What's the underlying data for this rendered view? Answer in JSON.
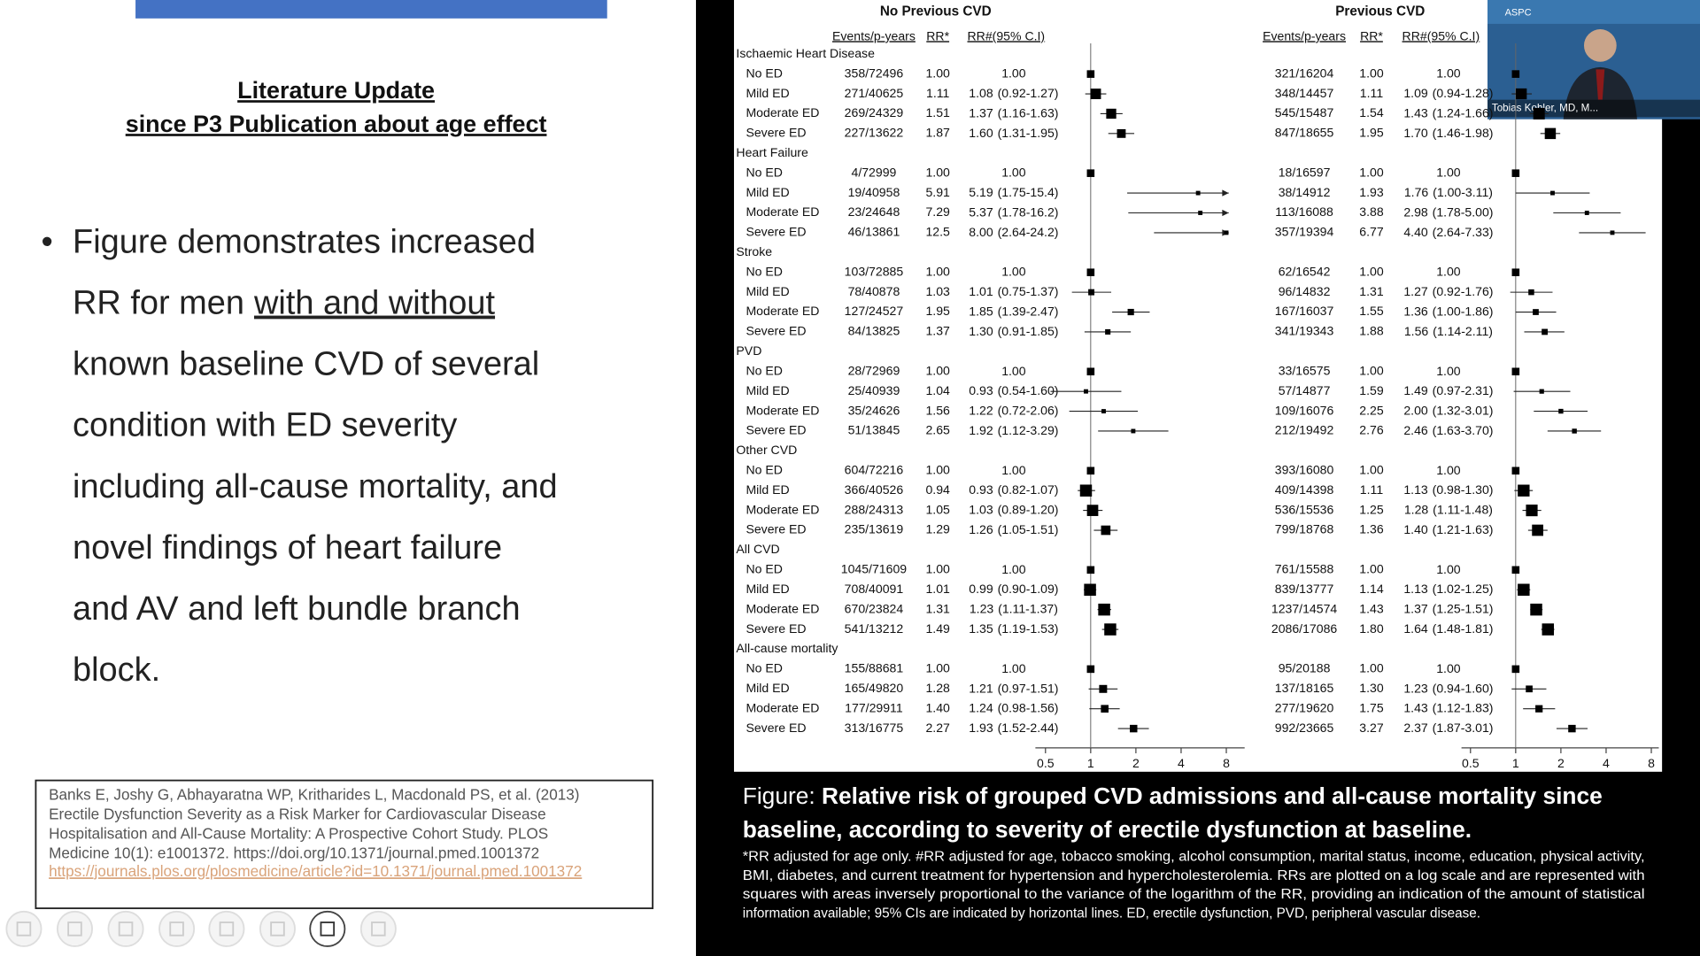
{
  "slide": {
    "title_line1": "Literature Update",
    "title_line2": "since P3 Publication about age effect",
    "bullet": {
      "symbol": "•",
      "lines": [
        "Figure demonstrates  increased",
        [
          "RR for men",
          "with and without"
        ],
        "known baseline CVD of several",
        "condition with ED severity",
        "including all-cause mortality, and",
        "novel findings of heart failure",
        "and AV and left bundle branch",
        "block."
      ]
    },
    "citation": {
      "lines": [
        "Banks E, Joshy G, Abhayaratna WP, Kritharides L, Macdonald PS, et al. (2013)",
        "Erectile Dysfunction Severity as a Risk Marker for Cardiovascular Disease",
        "Hospitalisation and All-Cause Mortality: A Prospective Cohort Study. PLOS",
        "Medicine 10(1): e1001372. https://doi.org/10.1371/journal.pmed.1001372"
      ],
      "link": "https://journals.plos.org/plosmedicine/article?id=10.1371/journal.pmed.1001372"
    }
  },
  "figure": {
    "panels": [
      {
        "title": "No Previous CVD",
        "headers": [
          "Events/p-years",
          "RR*",
          "RR#(95% C.I)"
        ]
      },
      {
        "title": "Previous CVD",
        "headers": [
          "Events/p-years",
          "RR*",
          "RR#(95% C.I)"
        ]
      }
    ],
    "xticks": [
      0.5,
      1,
      2,
      4,
      8
    ],
    "groups": [
      {
        "name": "Ischaemic Heart Disease",
        "rows": [
          {
            "label": "No ED",
            "values": [
              [
                "358/72496",
                "1.00",
                "1.00"
              ],
              [
                "321/16204",
                "1.00",
                "1.00"
              ]
            ]
          },
          {
            "label": "Mild ED",
            "values": [
              [
                "271/40625",
                "1.11",
                "1.08",
                "(0.92-1.27)"
              ],
              [
                "348/14457",
                "1.11",
                "1.09",
                "(0.94-1.28)"
              ]
            ]
          },
          {
            "label": "Moderate ED",
            "values": [
              [
                "269/24329",
                "1.51",
                "1.37",
                "(1.16-1.63)"
              ],
              [
                "545/15487",
                "1.54",
                "1.43",
                "(1.24-1.66)"
              ]
            ]
          },
          {
            "label": "Severe ED",
            "values": [
              [
                "227/13622",
                "1.87",
                "1.60",
                "(1.31-1.95)"
              ],
              [
                "847/18655",
                "1.95",
                "1.70",
                "(1.46-1.98)"
              ]
            ]
          }
        ]
      },
      {
        "name": "Heart Failure",
        "rows": [
          {
            "label": "No ED",
            "values": [
              [
                "4/72999",
                "1.00",
                "1.00"
              ],
              [
                "18/16597",
                "1.00",
                "1.00"
              ]
            ]
          },
          {
            "label": "Mild ED",
            "values": [
              [
                "19/40958",
                "5.91",
                "5.19",
                "(1.75-15.4)"
              ],
              [
                "38/14912",
                "1.93",
                "1.76",
                "(1.00-3.11)"
              ]
            ]
          },
          {
            "label": "Moderate ED",
            "values": [
              [
                "23/24648",
                "7.29",
                "5.37",
                "(1.78-16.2)"
              ],
              [
                "113/16088",
                "3.88",
                "2.98",
                "(1.78-5.00)"
              ]
            ]
          },
          {
            "label": "Severe ED",
            "values": [
              [
                "46/13861",
                "12.5",
                "8.00",
                "(2.64-24.2)"
              ],
              [
                "357/19394",
                "6.77",
                "4.40",
                "(2.64-7.33)"
              ]
            ]
          }
        ]
      },
      {
        "name": "Stroke",
        "rows": [
          {
            "label": "No ED",
            "values": [
              [
                "103/72885",
                "1.00",
                "1.00"
              ],
              [
                "62/16542",
                "1.00",
                "1.00"
              ]
            ]
          },
          {
            "label": "Mild ED",
            "values": [
              [
                "78/40878",
                "1.03",
                "1.01",
                "(0.75-1.37)"
              ],
              [
                "96/14832",
                "1.31",
                "1.27",
                "(0.92-1.76)"
              ]
            ]
          },
          {
            "label": "Moderate ED",
            "values": [
              [
                "127/24527",
                "1.95",
                "1.85",
                "(1.39-2.47)"
              ],
              [
                "167/16037",
                "1.55",
                "1.36",
                "(1.00-1.86)"
              ]
            ]
          },
          {
            "label": "Severe ED",
            "values": [
              [
                "84/13825",
                "1.37",
                "1.30",
                "(0.91-1.85)"
              ],
              [
                "341/19343",
                "1.88",
                "1.56",
                "(1.14-2.11)"
              ]
            ]
          }
        ]
      },
      {
        "name": "PVD",
        "rows": [
          {
            "label": "No ED",
            "values": [
              [
                "28/72969",
                "1.00",
                "1.00"
              ],
              [
                "33/16575",
                "1.00",
                "1.00"
              ]
            ]
          },
          {
            "label": "Mild ED",
            "values": [
              [
                "25/40939",
                "1.04",
                "0.93",
                "(0.54-1.60)"
              ],
              [
                "57/14877",
                "1.59",
                "1.49",
                "(0.97-2.31)"
              ]
            ]
          },
          {
            "label": "Moderate ED",
            "values": [
              [
                "35/24626",
                "1.56",
                "1.22",
                "(0.72-2.06)"
              ],
              [
                "109/16076",
                "2.25",
                "2.00",
                "(1.32-3.01)"
              ]
            ]
          },
          {
            "label": "Severe ED",
            "values": [
              [
                "51/13845",
                "2.65",
                "1.92",
                "(1.12-3.29)"
              ],
              [
                "212/19492",
                "2.76",
                "2.46",
                "(1.63-3.70)"
              ]
            ]
          }
        ]
      },
      {
        "name": "Other CVD",
        "rows": [
          {
            "label": "No ED",
            "values": [
              [
                "604/72216",
                "1.00",
                "1.00"
              ],
              [
                "393/16080",
                "1.00",
                "1.00"
              ]
            ]
          },
          {
            "label": "Mild ED",
            "values": [
              [
                "366/40526",
                "0.94",
                "0.93",
                "(0.82-1.07)"
              ],
              [
                "409/14398",
                "1.11",
                "1.13",
                "(0.98-1.30)"
              ]
            ]
          },
          {
            "label": "Moderate ED",
            "values": [
              [
                "288/24313",
                "1.05",
                "1.03",
                "(0.89-1.20)"
              ],
              [
                "536/15536",
                "1.25",
                "1.28",
                "(1.11-1.48)"
              ]
            ]
          },
          {
            "label": "Severe ED",
            "values": [
              [
                "235/13619",
                "1.29",
                "1.26",
                "(1.05-1.51)"
              ],
              [
                "799/18768",
                "1.36",
                "1.40",
                "(1.21-1.63)"
              ]
            ]
          }
        ]
      },
      {
        "name": "All CVD",
        "rows": [
          {
            "label": "No ED",
            "values": [
              [
                "1045/71609",
                "1.00",
                "1.00"
              ],
              [
                "761/15588",
                "1.00",
                "1.00"
              ]
            ]
          },
          {
            "label": "Mild ED",
            "values": [
              [
                "708/40091",
                "1.01",
                "0.99",
                "(0.90-1.09)"
              ],
              [
                "839/13777",
                "1.14",
                "1.13",
                "(1.02-1.25)"
              ]
            ]
          },
          {
            "label": "Moderate ED",
            "values": [
              [
                "670/23824",
                "1.31",
                "1.23",
                "(1.11-1.37)"
              ],
              [
                "1237/14574",
                "1.43",
                "1.37",
                "(1.25-1.51)"
              ]
            ]
          },
          {
            "label": "Severe ED",
            "values": [
              [
                "541/13212",
                "1.49",
                "1.35",
                "(1.19-1.53)"
              ],
              [
                "2086/17086",
                "1.80",
                "1.64",
                "(1.48-1.81)"
              ]
            ]
          }
        ]
      },
      {
        "name": "All-cause mortality",
        "rows": [
          {
            "label": "No ED",
            "values": [
              [
                "155/88681",
                "1.00",
                "1.00"
              ],
              [
                "95/20188",
                "1.00",
                "1.00"
              ]
            ]
          },
          {
            "label": "Mild ED",
            "values": [
              [
                "165/49820",
                "1.28",
                "1.21",
                "(0.97-1.51)"
              ],
              [
                "137/18165",
                "1.30",
                "1.23",
                "(0.94-1.60)"
              ]
            ]
          },
          {
            "label": "Moderate ED",
            "values": [
              [
                "177/29911",
                "1.40",
                "1.24",
                "(0.98-1.56)"
              ],
              [
                "277/19620",
                "1.75",
                "1.43",
                "(1.12-1.83)"
              ]
            ]
          },
          {
            "label": "Severe ED",
            "values": [
              [
                "313/16775",
                "2.27",
                "1.93",
                "(1.52-2.44)"
              ],
              [
                "992/23665",
                "3.27",
                "2.37",
                "(1.87-3.01)"
              ]
            ]
          }
        ]
      }
    ]
  },
  "caption": {
    "label": "Figure:",
    "title_line1": "Relative risk of grouped CVD admissions and all-cause mortality since",
    "title_line2": "baseline, according to severity of erectile dysfunction at baseline.",
    "notes": [
      "*RR adjusted for age only. #RR adjusted for age, tobacco smoking, alcohol consumption, marital status, income, education, physical activity,",
      "BMI, diabetes, and current treatment for hypertension and hypercholesterolemia. RRs are plotted on a log scale and are represented with",
      "squares with areas inversely proportional to the variance of the logarithm of the RR, providing an indication of the amount of statistical",
      "information available; 95% CIs are indicated by horizontal lines. ED, erectile dysfunction, PVD, peripheral vascular disease."
    ]
  },
  "video": {
    "logo": "ASPC",
    "name": "Tobias Kohler, MD, M..."
  }
}
